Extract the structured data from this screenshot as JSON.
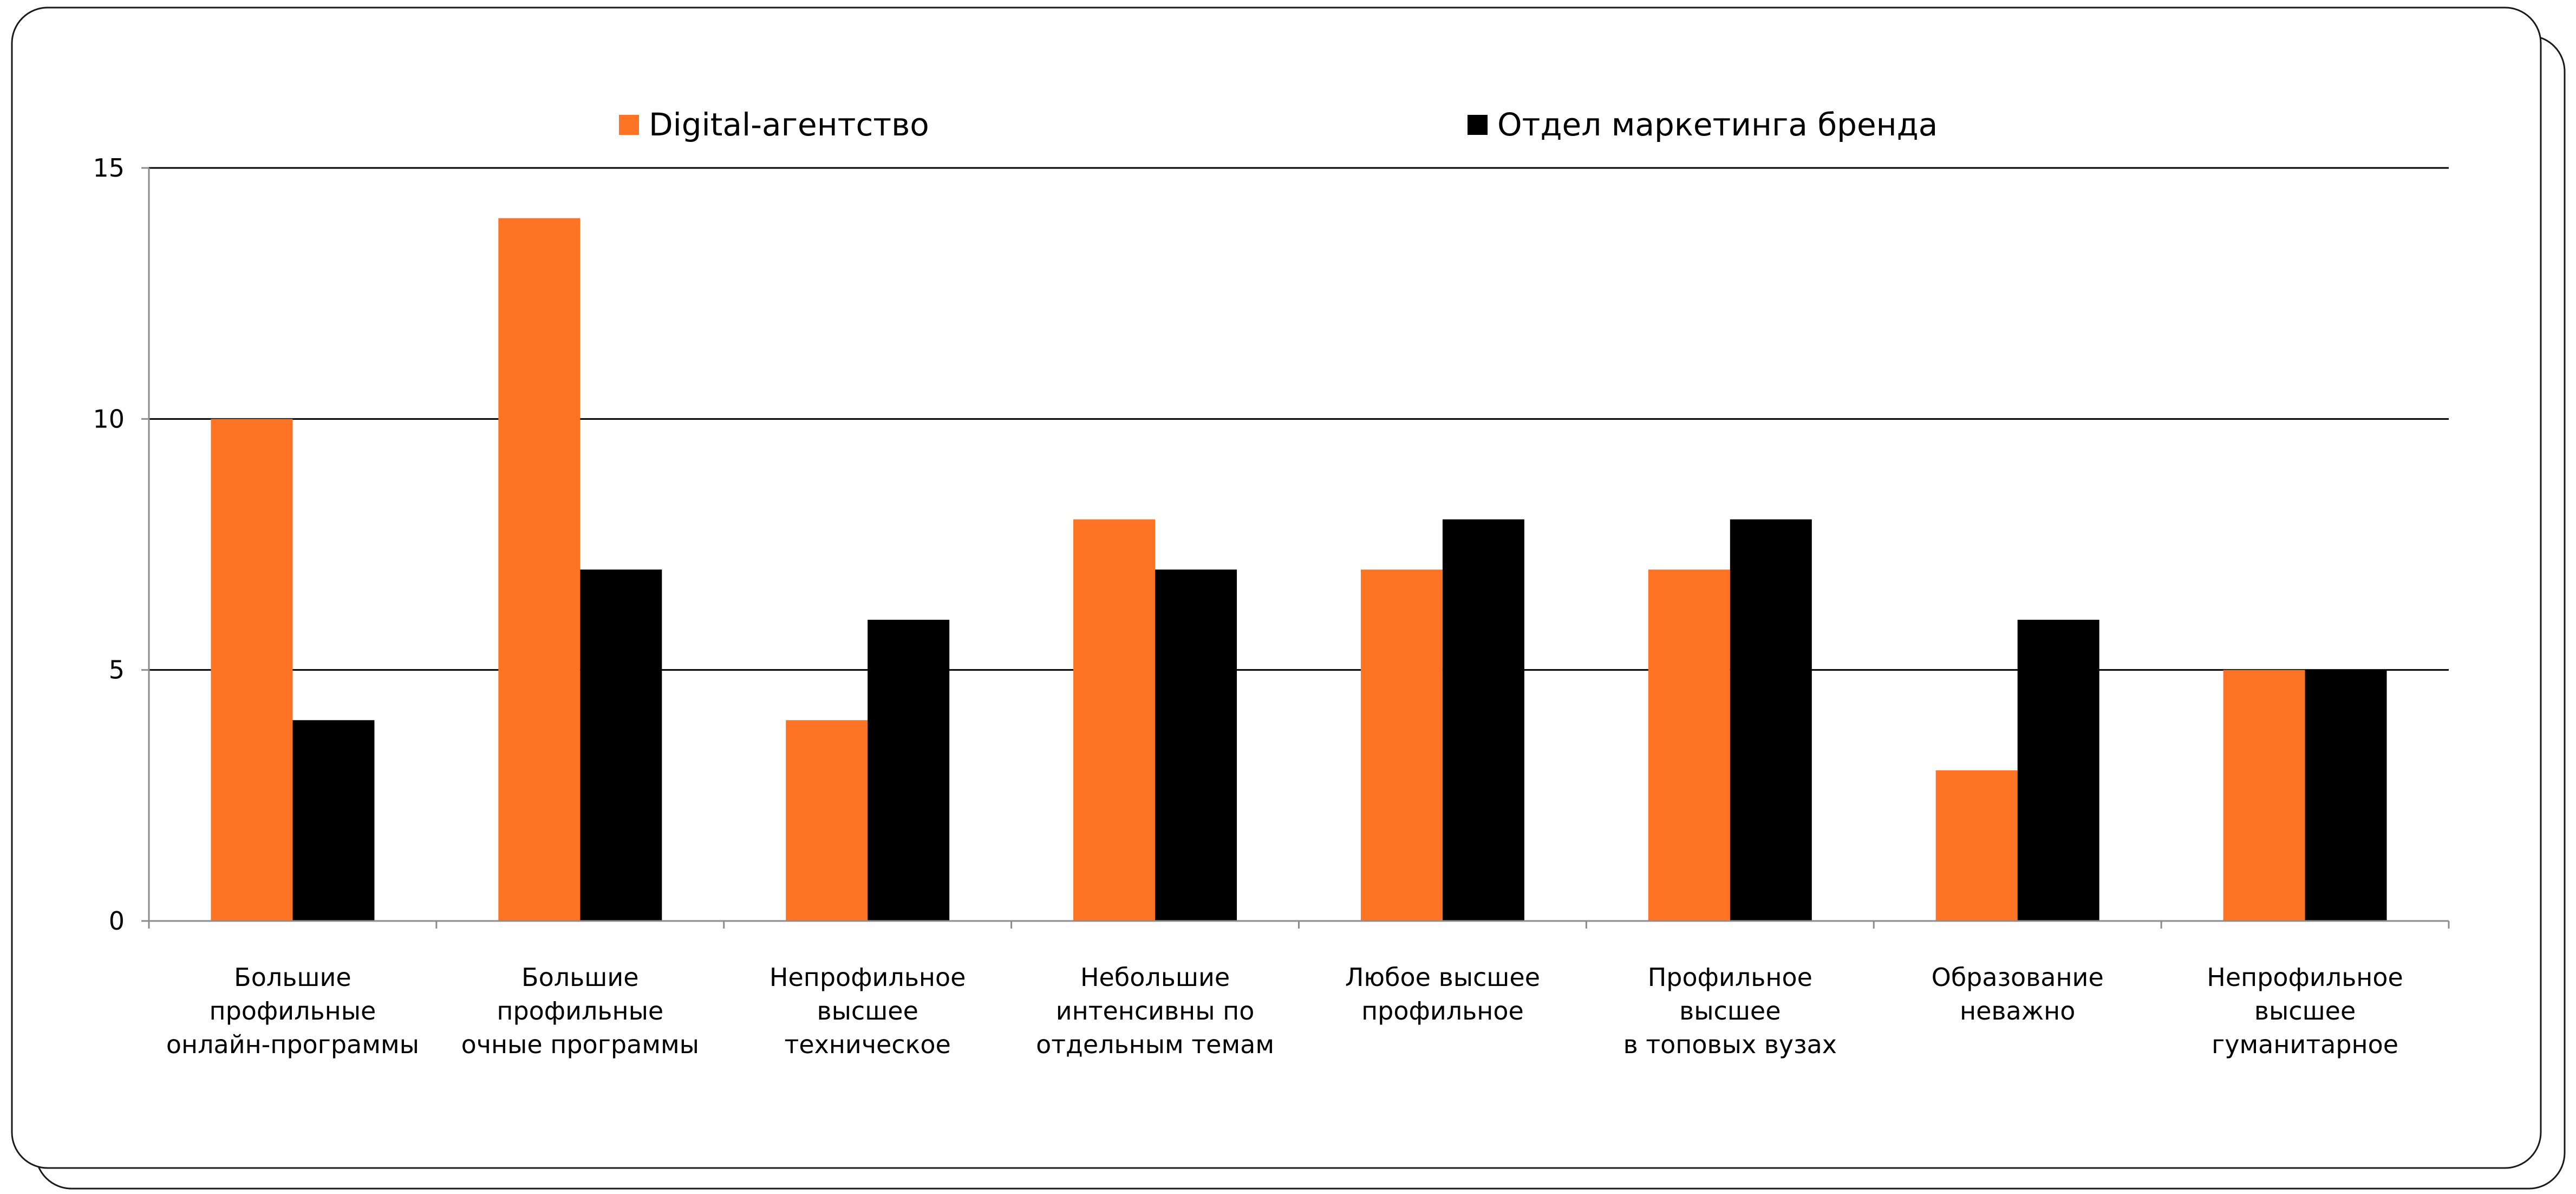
{
  "chart_data": {
    "type": "bar",
    "title": "",
    "xlabel": "",
    "ylabel": "",
    "ylim": [
      0,
      15
    ],
    "yticks": [
      0,
      5,
      10,
      15
    ],
    "grid": true,
    "legend_position": "top",
    "categories": [
      [
        "Большие",
        "профильные",
        "онлайн-программы"
      ],
      [
        "Большие",
        "профильные",
        "очные программы"
      ],
      [
        "Непрофильное",
        "высшее",
        "техническое"
      ],
      [
        "Небольшие",
        "интенсивны по",
        "отдельным темам"
      ],
      [
        "Любое высшее",
        "профильное"
      ],
      [
        "Профильное",
        "высшее",
        "в топовых вузах"
      ],
      [
        "Образование",
        "неважно"
      ],
      [
        "Непрофильное",
        "высшее",
        "гуманитарное"
      ]
    ],
    "series": [
      {
        "name": "Digital-агентство",
        "color": "#FF7424",
        "values": [
          10,
          14,
          4,
          8,
          7,
          7,
          3,
          5
        ]
      },
      {
        "name": "Отдел маркетинга бренда",
        "color": "#000000",
        "values": [
          4,
          7,
          6,
          7,
          8,
          8,
          6,
          5
        ]
      }
    ]
  }
}
